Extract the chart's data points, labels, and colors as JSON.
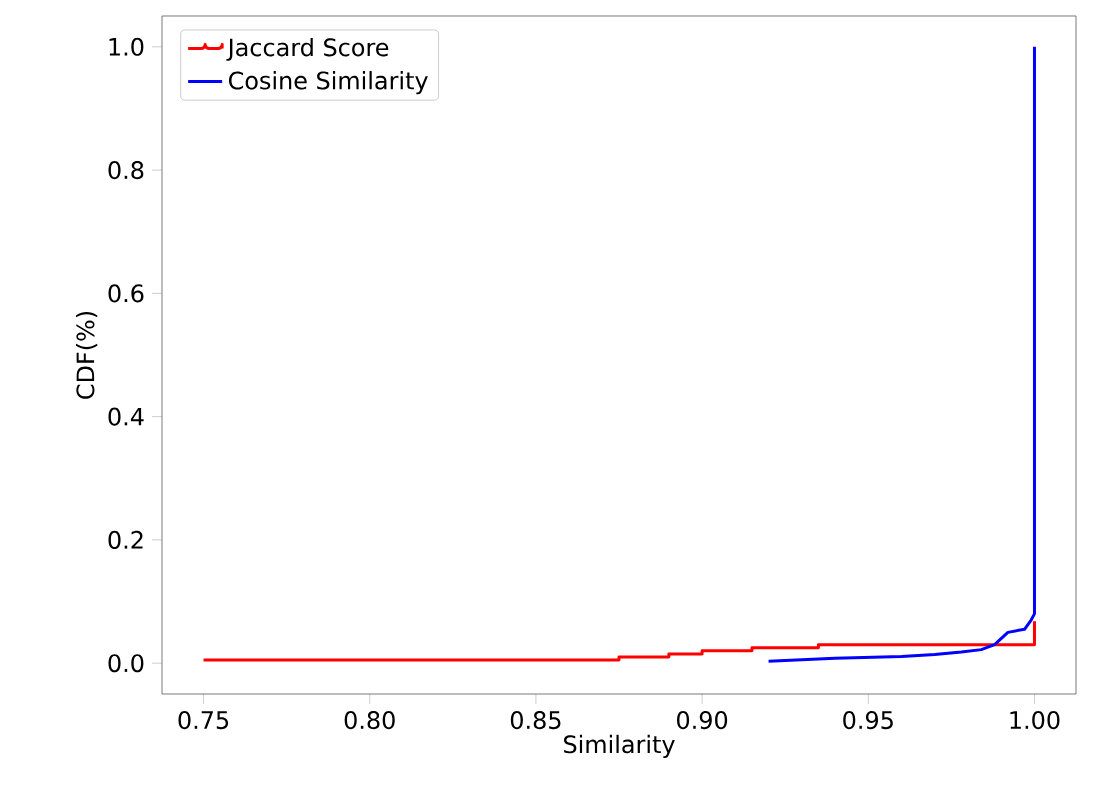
{
  "chart_data": {
    "type": "line",
    "xlabel": "Similarity",
    "ylabel": "CDF(%)",
    "xlim": [
      0.7375,
      1.0125
    ],
    "ylim": [
      -0.05,
      1.05
    ],
    "xticks": [
      {
        "value": 0.75,
        "label": "0.75"
      },
      {
        "value": 0.8,
        "label": "0.80"
      },
      {
        "value": 0.85,
        "label": "0.85"
      },
      {
        "value": 0.9,
        "label": "0.90"
      },
      {
        "value": 0.95,
        "label": "0.95"
      },
      {
        "value": 1.0,
        "label": "1.00"
      }
    ],
    "yticks": [
      {
        "value": 0,
        "label": "0.0"
      },
      {
        "value": 0.2,
        "label": "0.2"
      },
      {
        "value": 0.4,
        "label": "0.4"
      },
      {
        "value": 0.6,
        "label": "0.6"
      },
      {
        "value": 0.8,
        "label": "0.8"
      },
      {
        "value": 1.0,
        "label": "1.0"
      }
    ],
    "legend": "top left",
    "grid": false,
    "series": [
      {
        "name": "Jaccard Score",
        "type": "step",
        "color": "#ff0000",
        "x": [
          0.75,
          0.875,
          0.89,
          0.9,
          0.915,
          0.935,
          1.0,
          1.0
        ],
        "values": [
          0.005,
          0.01,
          0.015,
          0.02,
          0.025,
          0.03,
          0.033,
          0.068
        ]
      },
      {
        "name": "Cosine Similarity",
        "color": "#0000ff",
        "x": [
          0.92,
          0.94,
          0.96,
          0.97,
          0.978,
          0.984,
          0.988,
          0.99,
          0.992,
          0.997,
          0.999,
          1.0,
          1.0
        ],
        "values": [
          0.003,
          0.008,
          0.011,
          0.014,
          0.018,
          0.022,
          0.03,
          0.04,
          0.05,
          0.055,
          0.07,
          0.08,
          1.0
        ]
      }
    ]
  }
}
